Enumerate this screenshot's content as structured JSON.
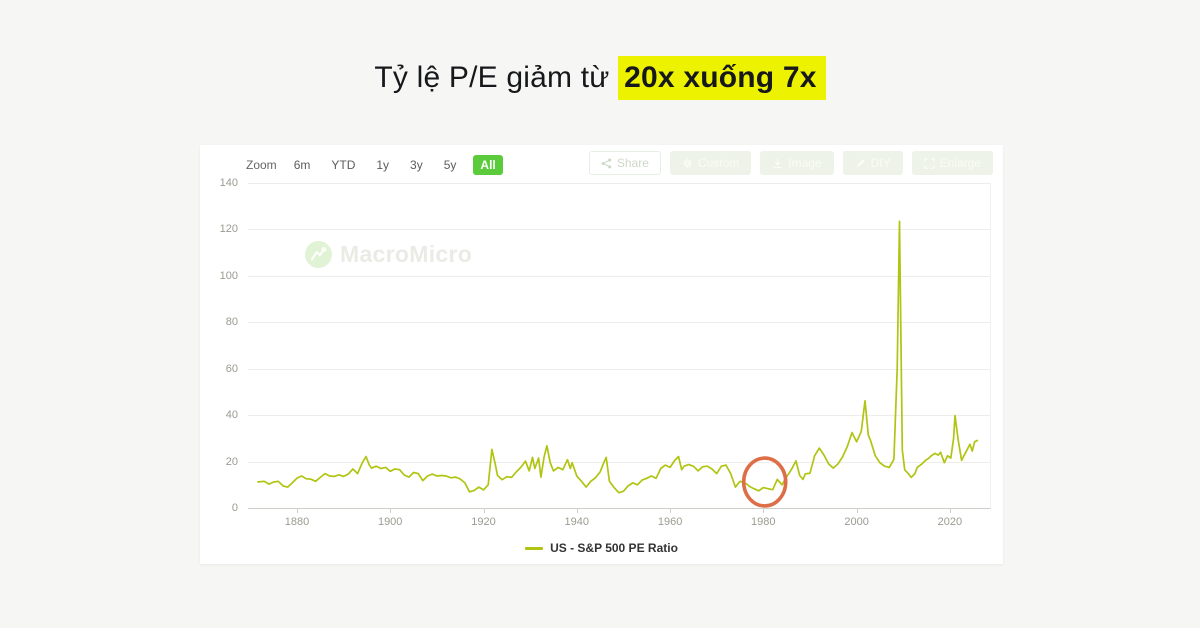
{
  "page": {
    "background": "#f6f6f4"
  },
  "title": {
    "prefix": "Tỷ lệ P/E giảm từ",
    "highlight": "20x xuống 7x",
    "highlight_bg": "#edf200",
    "text_color": "#17181c"
  },
  "chart_card": {
    "toolbar": {
      "zoom_label": "Zoom",
      "ranges": [
        {
          "label": "6m",
          "active": false
        },
        {
          "label": "YTD",
          "active": false
        },
        {
          "label": "1y",
          "active": false
        },
        {
          "label": "3y",
          "active": false
        },
        {
          "label": "5y",
          "active": false
        },
        {
          "label": "All",
          "active": true
        }
      ],
      "active_bg": "#5bcb3b",
      "buttons": [
        {
          "label": "Share",
          "icon": "share-icon",
          "style": "outline"
        },
        {
          "label": "Custom",
          "icon": "gear-icon",
          "style": "ghost"
        },
        {
          "label": "Image",
          "icon": "download-icon",
          "style": "ghost"
        },
        {
          "label": "DIY",
          "icon": "pencil-icon",
          "style": "ghost"
        },
        {
          "label": "Enlarge",
          "icon": "enlarge-icon",
          "style": "ghost"
        }
      ]
    },
    "watermark": {
      "text": "MacroMicro",
      "icon": "macromicro-logo-icon"
    },
    "legend": {
      "label": "US - S&P 500 PE Ratio",
      "swatch_color": "#b0c411"
    }
  },
  "chart_data": {
    "type": "line",
    "title": "US - S&P 500 PE Ratio",
    "xlabel": "",
    "ylabel": "",
    "xlim": [
      1869.5,
      2028.6
    ],
    "ylim": [
      0,
      140
    ],
    "xticks": [
      1880,
      1900,
      1920,
      1940,
      1960,
      1980,
      2000,
      2020
    ],
    "yticks": [
      0,
      20,
      40,
      60,
      80,
      100,
      120,
      140
    ],
    "grid": true,
    "legend_position": "bottom",
    "series": [
      {
        "name": "US - S&P 500 PE Ratio",
        "color": "#b0c411",
        "points": [
          [
            1871.5,
            11.2
          ],
          [
            1873,
            11.5
          ],
          [
            1874,
            10.3
          ],
          [
            1875,
            11.2
          ],
          [
            1876,
            11.5
          ],
          [
            1877,
            9.5
          ],
          [
            1878,
            9.0
          ],
          [
            1879,
            10.8
          ],
          [
            1880,
            12.9
          ],
          [
            1881,
            13.8
          ],
          [
            1882,
            12.6
          ],
          [
            1883,
            12.4
          ],
          [
            1884,
            11.5
          ],
          [
            1885,
            13.2
          ],
          [
            1886,
            14.8
          ],
          [
            1887,
            13.8
          ],
          [
            1888,
            13.6
          ],
          [
            1889,
            14.3
          ],
          [
            1890,
            13.6
          ],
          [
            1891,
            14.6
          ],
          [
            1892,
            16.8
          ],
          [
            1893,
            14.8
          ],
          [
            1894,
            19.5
          ],
          [
            1894.8,
            22.2
          ],
          [
            1895.5,
            18.5
          ],
          [
            1896,
            17.2
          ],
          [
            1897,
            18.0
          ],
          [
            1898,
            17.0
          ],
          [
            1899,
            17.5
          ],
          [
            1900,
            15.8
          ],
          [
            1901,
            16.8
          ],
          [
            1902,
            16.5
          ],
          [
            1903,
            14.2
          ],
          [
            1904,
            13.3
          ],
          [
            1905,
            15.3
          ],
          [
            1906,
            14.8
          ],
          [
            1907,
            11.8
          ],
          [
            1908,
            13.8
          ],
          [
            1909,
            14.6
          ],
          [
            1910,
            13.8
          ],
          [
            1911,
            14.0
          ],
          [
            1912,
            13.8
          ],
          [
            1913,
            13.0
          ],
          [
            1914,
            13.3
          ],
          [
            1915,
            12.5
          ],
          [
            1916,
            10.8
          ],
          [
            1917,
            7.0
          ],
          [
            1918,
            7.6
          ],
          [
            1919,
            9.0
          ],
          [
            1920,
            7.8
          ],
          [
            1921,
            10.0
          ],
          [
            1921.8,
            25.3
          ],
          [
            1922.5,
            19.0
          ],
          [
            1923,
            14.0
          ],
          [
            1924,
            12.2
          ],
          [
            1925,
            13.5
          ],
          [
            1926,
            13.2
          ],
          [
            1927,
            15.5
          ],
          [
            1928,
            17.5
          ],
          [
            1929,
            20.2
          ],
          [
            1929.8,
            16.0
          ],
          [
            1930.5,
            21.8
          ],
          [
            1931,
            17.0
          ],
          [
            1931.8,
            21.5
          ],
          [
            1932.3,
            13.3
          ],
          [
            1933,
            22.0
          ],
          [
            1933.6,
            26.8
          ],
          [
            1934.3,
            19.5
          ],
          [
            1935,
            16.0
          ],
          [
            1936,
            17.5
          ],
          [
            1937,
            16.5
          ],
          [
            1938,
            20.8
          ],
          [
            1938.6,
            17.0
          ],
          [
            1939,
            19.5
          ],
          [
            1940,
            13.8
          ],
          [
            1941,
            11.5
          ],
          [
            1942,
            9.0
          ],
          [
            1943,
            11.5
          ],
          [
            1944,
            13.0
          ],
          [
            1945,
            15.5
          ],
          [
            1945.8,
            19.5
          ],
          [
            1946.3,
            21.8
          ],
          [
            1947,
            11.5
          ],
          [
            1948,
            8.8
          ],
          [
            1949,
            6.6
          ],
          [
            1950,
            7.2
          ],
          [
            1951,
            9.5
          ],
          [
            1952,
            10.8
          ],
          [
            1953,
            10.0
          ],
          [
            1954,
            12.0
          ],
          [
            1955,
            12.8
          ],
          [
            1956,
            13.8
          ],
          [
            1957,
            12.8
          ],
          [
            1958,
            17.0
          ],
          [
            1959,
            18.5
          ],
          [
            1960,
            17.5
          ],
          [
            1961,
            20.5
          ],
          [
            1961.8,
            22.2
          ],
          [
            1962.5,
            16.5
          ],
          [
            1963,
            18.0
          ],
          [
            1964,
            18.7
          ],
          [
            1965,
            18.0
          ],
          [
            1966,
            16.0
          ],
          [
            1967,
            17.8
          ],
          [
            1968,
            18.0
          ],
          [
            1969,
            16.8
          ],
          [
            1970,
            14.8
          ],
          [
            1971,
            18.0
          ],
          [
            1972,
            18.5
          ],
          [
            1973,
            14.8
          ],
          [
            1974,
            9.0
          ],
          [
            1975,
            11.5
          ],
          [
            1976,
            11.0
          ],
          [
            1977,
            9.3
          ],
          [
            1978,
            8.3
          ],
          [
            1979,
            7.4
          ],
          [
            1980,
            8.8
          ],
          [
            1981,
            8.3
          ],
          [
            1982,
            7.9
          ],
          [
            1983,
            12.3
          ],
          [
            1984,
            10.0
          ],
          [
            1985,
            13.5
          ],
          [
            1986,
            16.5
          ],
          [
            1987,
            20.3
          ],
          [
            1987.8,
            14.0
          ],
          [
            1988.5,
            12.3
          ],
          [
            1989,
            14.7
          ],
          [
            1990,
            15.0
          ],
          [
            1991,
            22.5
          ],
          [
            1992,
            25.8
          ],
          [
            1993,
            22.8
          ],
          [
            1994,
            19.0
          ],
          [
            1995,
            17.2
          ],
          [
            1996,
            19.0
          ],
          [
            1997,
            22.0
          ],
          [
            1998,
            26.5
          ],
          [
            1999,
            32.5
          ],
          [
            2000,
            28.5
          ],
          [
            2001,
            33.0
          ],
          [
            2001.8,
            46.2
          ],
          [
            2002.5,
            31.5
          ],
          [
            2003,
            29.0
          ],
          [
            2004,
            22.5
          ],
          [
            2005,
            19.5
          ],
          [
            2006,
            18.0
          ],
          [
            2007,
            17.5
          ],
          [
            2008,
            21.0
          ],
          [
            2008.7,
            60.0
          ],
          [
            2009.2,
            123.5
          ],
          [
            2009.8,
            25.0
          ],
          [
            2010.3,
            16.5
          ],
          [
            2011,
            15.0
          ],
          [
            2011.7,
            13.2
          ],
          [
            2012.5,
            14.8
          ],
          [
            2013,
            17.5
          ],
          [
            2014,
            19.0
          ],
          [
            2014.8,
            20.5
          ],
          [
            2015.5,
            21.5
          ],
          [
            2016,
            22.5
          ],
          [
            2016.8,
            23.5
          ],
          [
            2017.5,
            22.8
          ],
          [
            2018,
            24.0
          ],
          [
            2018.8,
            19.5
          ],
          [
            2019.5,
            22.5
          ],
          [
            2020.2,
            21.5
          ],
          [
            2020.8,
            30.0
          ],
          [
            2021.1,
            39.8
          ],
          [
            2021.8,
            29.0
          ],
          [
            2022.5,
            20.5
          ],
          [
            2023,
            22.5
          ],
          [
            2023.8,
            25.5
          ],
          [
            2024.3,
            27.5
          ],
          [
            2024.8,
            24.5
          ],
          [
            2025.3,
            28.5
          ],
          [
            2026,
            29.2
          ]
        ]
      }
    ],
    "annotations": [
      {
        "type": "ellipse",
        "center_x": 1980.3,
        "center_y": 11.2,
        "rx_x": 4.5,
        "ry_y": 10.3,
        "color": "#dd6f48"
      }
    ]
  }
}
